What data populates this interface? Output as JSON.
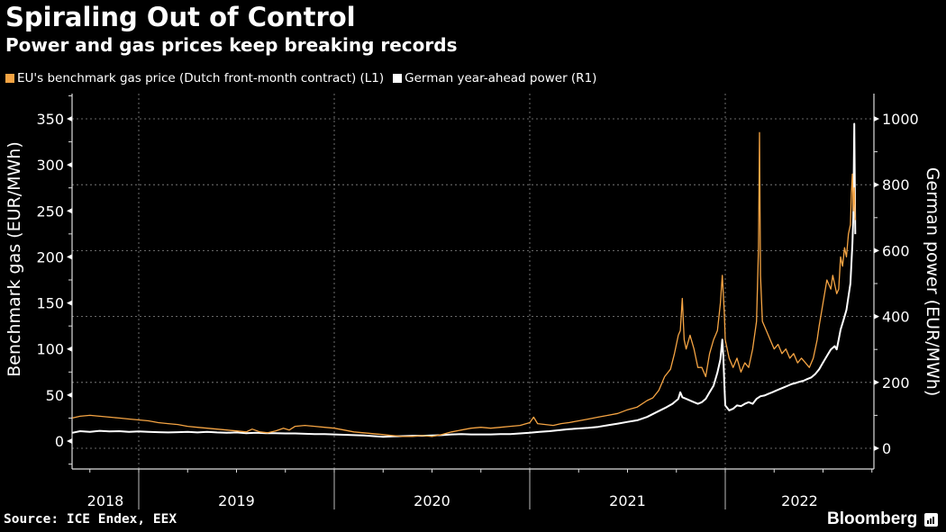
{
  "header": {
    "title": "Spiraling Out of Control",
    "subtitle": "Power and gas prices keep breaking records"
  },
  "footer": {
    "source": "Source: ICE Endex, EEX",
    "brand": "Bloomberg",
    "brand_icon": "bloomberg-terminal-icon"
  },
  "colors": {
    "background": "#000000",
    "gas": "#f5a443",
    "power": "#ffffff",
    "grid": "#8a8a8a"
  },
  "chart_data": {
    "type": "line",
    "title": "Spiraling Out of Control",
    "subtitle": "Power and gas prices keep breaking records",
    "xlabel": "",
    "x_tick_labels": [
      "2018",
      "2019",
      "2020",
      "2021",
      "2022"
    ],
    "x_range": [
      2018.66,
      2022.67
    ],
    "grid": true,
    "legend_position": "top-left",
    "y_left": {
      "label": "Benchmark gas (EUR/MWh)",
      "ticks": [
        0,
        50,
        100,
        150,
        200,
        250,
        300,
        350
      ],
      "range": [
        -30,
        375
      ]
    },
    "y_right": {
      "label": "German power (EUR/MWh)",
      "ticks": [
        0,
        200,
        400,
        600,
        800,
        1000
      ],
      "range": [
        -60,
        1075
      ]
    },
    "series": [
      {
        "name": "EU's benchmark gas price (Dutch front-month contract) (L1)",
        "axis": "left",
        "color": "#f5a443",
        "points": [
          [
            2018.66,
            25
          ],
          [
            2018.7,
            27
          ],
          [
            2018.75,
            28
          ],
          [
            2018.8,
            27
          ],
          [
            2018.85,
            26
          ],
          [
            2018.9,
            25
          ],
          [
            2018.95,
            24
          ],
          [
            2019.0,
            23
          ],
          [
            2019.05,
            22
          ],
          [
            2019.1,
            20
          ],
          [
            2019.15,
            19
          ],
          [
            2019.2,
            18
          ],
          [
            2019.25,
            16
          ],
          [
            2019.3,
            15
          ],
          [
            2019.35,
            14
          ],
          [
            2019.4,
            13
          ],
          [
            2019.45,
            12
          ],
          [
            2019.5,
            11
          ],
          [
            2019.55,
            10
          ],
          [
            2019.58,
            13
          ],
          [
            2019.62,
            10
          ],
          [
            2019.66,
            9
          ],
          [
            2019.7,
            11
          ],
          [
            2019.74,
            14
          ],
          [
            2019.77,
            12
          ],
          [
            2019.8,
            16
          ],
          [
            2019.85,
            17
          ],
          [
            2019.9,
            16
          ],
          [
            2019.95,
            15
          ],
          [
            2020.0,
            14
          ],
          [
            2020.05,
            12
          ],
          [
            2020.1,
            10
          ],
          [
            2020.15,
            9
          ],
          [
            2020.2,
            8
          ],
          [
            2020.25,
            7
          ],
          [
            2020.3,
            6
          ],
          [
            2020.35,
            5
          ],
          [
            2020.4,
            5
          ],
          [
            2020.45,
            6
          ],
          [
            2020.5,
            5
          ],
          [
            2020.55,
            7
          ],
          [
            2020.6,
            10
          ],
          [
            2020.65,
            12
          ],
          [
            2020.7,
            14
          ],
          [
            2020.75,
            15
          ],
          [
            2020.8,
            14
          ],
          [
            2020.85,
            15
          ],
          [
            2020.9,
            16
          ],
          [
            2020.95,
            17
          ],
          [
            2021.0,
            20
          ],
          [
            2021.02,
            26
          ],
          [
            2021.04,
            19
          ],
          [
            2021.08,
            18
          ],
          [
            2021.12,
            17
          ],
          [
            2021.16,
            19
          ],
          [
            2021.2,
            20
          ],
          [
            2021.25,
            22
          ],
          [
            2021.3,
            24
          ],
          [
            2021.35,
            26
          ],
          [
            2021.4,
            28
          ],
          [
            2021.45,
            30
          ],
          [
            2021.5,
            34
          ],
          [
            2021.55,
            37
          ],
          [
            2021.6,
            44
          ],
          [
            2021.63,
            47
          ],
          [
            2021.66,
            55
          ],
          [
            2021.69,
            70
          ],
          [
            2021.72,
            78
          ],
          [
            2021.74,
            95
          ],
          [
            2021.76,
            115
          ],
          [
            2021.77,
            120
          ],
          [
            2021.78,
            155
          ],
          [
            2021.79,
            110
          ],
          [
            2021.8,
            100
          ],
          [
            2021.82,
            115
          ],
          [
            2021.84,
            100
          ],
          [
            2021.86,
            80
          ],
          [
            2021.88,
            80
          ],
          [
            2021.9,
            70
          ],
          [
            2021.92,
            95
          ],
          [
            2021.94,
            110
          ],
          [
            2021.96,
            120
          ],
          [
            2021.975,
            150
          ],
          [
            2021.985,
            180
          ],
          [
            2021.995,
            140
          ],
          [
            2022.0,
            110
          ],
          [
            2022.02,
            90
          ],
          [
            2022.04,
            80
          ],
          [
            2022.06,
            90
          ],
          [
            2022.08,
            75
          ],
          [
            2022.1,
            85
          ],
          [
            2022.12,
            80
          ],
          [
            2022.14,
            100
          ],
          [
            2022.16,
            130
          ],
          [
            2022.17,
            210
          ],
          [
            2022.175,
            335
          ],
          [
            2022.18,
            180
          ],
          [
            2022.19,
            130
          ],
          [
            2022.21,
            120
          ],
          [
            2022.23,
            110
          ],
          [
            2022.25,
            100
          ],
          [
            2022.27,
            105
          ],
          [
            2022.29,
            95
          ],
          [
            2022.31,
            100
          ],
          [
            2022.33,
            90
          ],
          [
            2022.35,
            95
          ],
          [
            2022.37,
            85
          ],
          [
            2022.39,
            90
          ],
          [
            2022.41,
            85
          ],
          [
            2022.43,
            80
          ],
          [
            2022.45,
            90
          ],
          [
            2022.47,
            110
          ],
          [
            2022.48,
            125
          ],
          [
            2022.5,
            150
          ],
          [
            2022.52,
            175
          ],
          [
            2022.54,
            165
          ],
          [
            2022.55,
            180
          ],
          [
            2022.57,
            160
          ],
          [
            2022.58,
            165
          ],
          [
            2022.59,
            200
          ],
          [
            2022.6,
            190
          ],
          [
            2022.61,
            210
          ],
          [
            2022.62,
            200
          ],
          [
            2022.63,
            225
          ],
          [
            2022.64,
            235
          ],
          [
            2022.645,
            270
          ],
          [
            2022.65,
            290
          ],
          [
            2022.655,
            250
          ],
          [
            2022.66,
            275
          ],
          [
            2022.665,
            240
          ]
        ]
      },
      {
        "name": "German year-ahead power (R1)",
        "axis": "right",
        "color": "#ffffff",
        "points": [
          [
            2018.66,
            47
          ],
          [
            2018.7,
            52
          ],
          [
            2018.75,
            50
          ],
          [
            2018.8,
            53
          ],
          [
            2018.85,
            51
          ],
          [
            2018.9,
            52
          ],
          [
            2018.95,
            50
          ],
          [
            2019.0,
            51
          ],
          [
            2019.05,
            50
          ],
          [
            2019.1,
            49
          ],
          [
            2019.15,
            48
          ],
          [
            2019.2,
            49
          ],
          [
            2019.25,
            50
          ],
          [
            2019.3,
            48
          ],
          [
            2019.35,
            50
          ],
          [
            2019.4,
            48
          ],
          [
            2019.45,
            47
          ],
          [
            2019.5,
            48
          ],
          [
            2019.55,
            46
          ],
          [
            2019.6,
            47
          ],
          [
            2019.65,
            46
          ],
          [
            2019.7,
            46
          ],
          [
            2019.75,
            45
          ],
          [
            2019.8,
            45
          ],
          [
            2019.85,
            44
          ],
          [
            2019.9,
            43
          ],
          [
            2019.95,
            43
          ],
          [
            2020.0,
            42
          ],
          [
            2020.05,
            41
          ],
          [
            2020.1,
            40
          ],
          [
            2020.15,
            39
          ],
          [
            2020.2,
            37
          ],
          [
            2020.25,
            35
          ],
          [
            2020.3,
            36
          ],
          [
            2020.35,
            37
          ],
          [
            2020.4,
            38
          ],
          [
            2020.45,
            38
          ],
          [
            2020.5,
            39
          ],
          [
            2020.55,
            40
          ],
          [
            2020.6,
            42
          ],
          [
            2020.65,
            43
          ],
          [
            2020.7,
            42
          ],
          [
            2020.75,
            42
          ],
          [
            2020.8,
            42
          ],
          [
            2020.85,
            43
          ],
          [
            2020.9,
            43
          ],
          [
            2020.95,
            45
          ],
          [
            2021.0,
            47
          ],
          [
            2021.05,
            50
          ],
          [
            2021.1,
            52
          ],
          [
            2021.15,
            55
          ],
          [
            2021.2,
            58
          ],
          [
            2021.25,
            60
          ],
          [
            2021.3,
            62
          ],
          [
            2021.35,
            65
          ],
          [
            2021.4,
            70
          ],
          [
            2021.45,
            75
          ],
          [
            2021.5,
            80
          ],
          [
            2021.55,
            85
          ],
          [
            2021.6,
            95
          ],
          [
            2021.65,
            110
          ],
          [
            2021.7,
            125
          ],
          [
            2021.73,
            135
          ],
          [
            2021.76,
            150
          ],
          [
            2021.77,
            170
          ],
          [
            2021.78,
            155
          ],
          [
            2021.8,
            150
          ],
          [
            2021.82,
            145
          ],
          [
            2021.84,
            140
          ],
          [
            2021.86,
            135
          ],
          [
            2021.88,
            140
          ],
          [
            2021.9,
            150
          ],
          [
            2021.92,
            170
          ],
          [
            2021.94,
            190
          ],
          [
            2021.96,
            230
          ],
          [
            2021.975,
            270
          ],
          [
            2021.985,
            330
          ],
          [
            2021.99,
            280
          ],
          [
            2021.995,
            200
          ],
          [
            2022.0,
            130
          ],
          [
            2022.02,
            115
          ],
          [
            2022.04,
            120
          ],
          [
            2022.06,
            130
          ],
          [
            2022.08,
            128
          ],
          [
            2022.1,
            135
          ],
          [
            2022.12,
            140
          ],
          [
            2022.14,
            135
          ],
          [
            2022.16,
            150
          ],
          [
            2022.18,
            158
          ],
          [
            2022.2,
            160
          ],
          [
            2022.22,
            165
          ],
          [
            2022.24,
            170
          ],
          [
            2022.26,
            175
          ],
          [
            2022.28,
            180
          ],
          [
            2022.3,
            185
          ],
          [
            2022.32,
            190
          ],
          [
            2022.34,
            195
          ],
          [
            2022.36,
            198
          ],
          [
            2022.38,
            202
          ],
          [
            2022.4,
            205
          ],
          [
            2022.42,
            210
          ],
          [
            2022.44,
            215
          ],
          [
            2022.46,
            225
          ],
          [
            2022.48,
            240
          ],
          [
            2022.5,
            260
          ],
          [
            2022.52,
            280
          ],
          [
            2022.54,
            300
          ],
          [
            2022.56,
            310
          ],
          [
            2022.57,
            300
          ],
          [
            2022.58,
            330
          ],
          [
            2022.59,
            360
          ],
          [
            2022.6,
            380
          ],
          [
            2022.61,
            400
          ],
          [
            2022.62,
            420
          ],
          [
            2022.63,
            460
          ],
          [
            2022.64,
            500
          ],
          [
            2022.645,
            560
          ],
          [
            2022.65,
            620
          ],
          [
            2022.655,
            700
          ],
          [
            2022.66,
            985
          ],
          [
            2022.665,
            650
          ]
        ]
      }
    ]
  }
}
